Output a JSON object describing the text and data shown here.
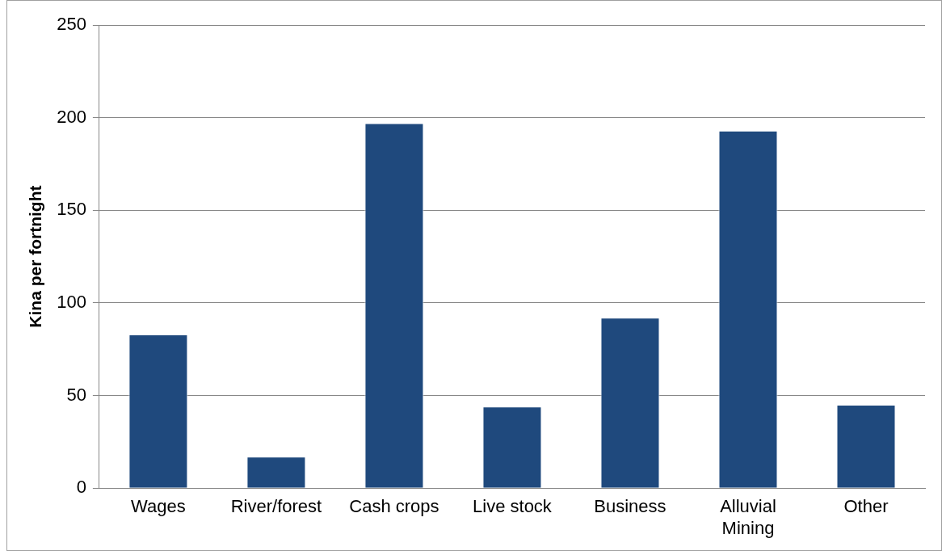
{
  "chart_data": {
    "type": "bar",
    "ylabel": "Kina per fortnight",
    "categories": [
      "Wages",
      "River/forest",
      "Cash crops",
      "Live stock",
      "Business",
      "Alluvial Mining",
      "Other"
    ],
    "values": [
      83,
      17,
      197,
      44,
      92,
      193,
      45
    ],
    "color": "#1f497d",
    "ylim": [
      0,
      250
    ],
    "yticks": [
      0,
      50,
      100,
      150,
      200,
      250
    ],
    "grid": "y",
    "legend": false
  }
}
